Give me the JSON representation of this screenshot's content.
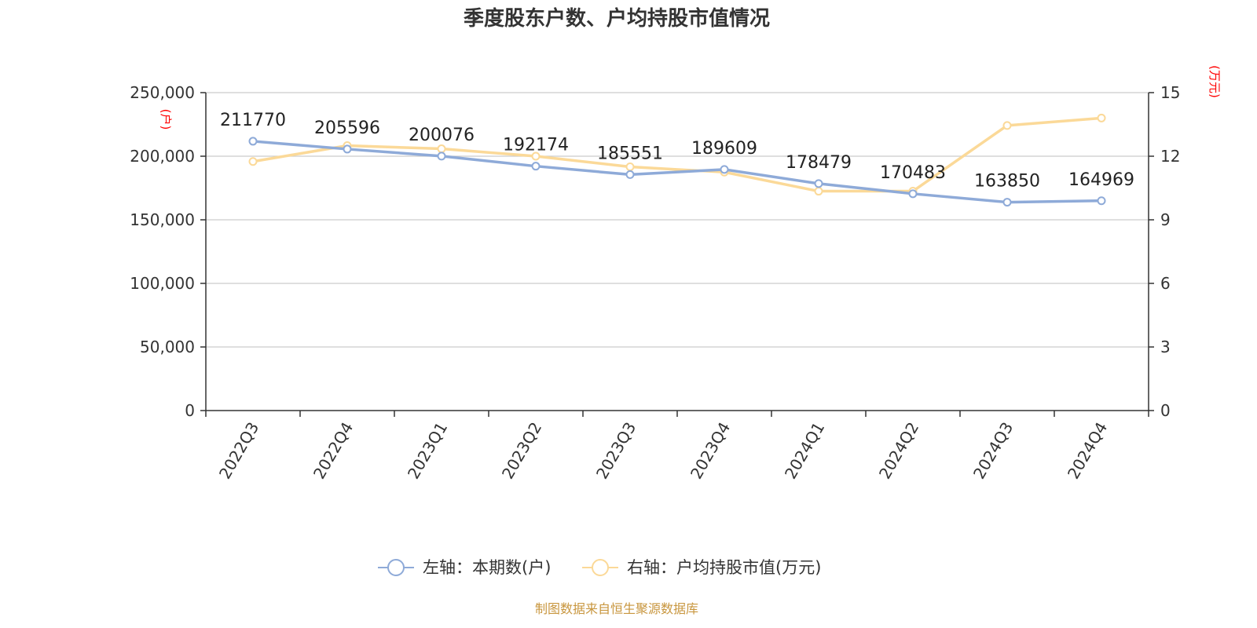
{
  "chart_data": {
    "type": "line",
    "title": "季度股东户数、户均持股市值情况",
    "categories": [
      "2022Q3",
      "2022Q4",
      "2023Q1",
      "2023Q2",
      "2023Q3",
      "2023Q4",
      "2024Q1",
      "2024Q2",
      "2024Q3",
      "2024Q4"
    ],
    "left_axis": {
      "unit": "(户)",
      "ylim": [
        0,
        250000
      ],
      "ticks": [
        0,
        50000,
        100000,
        150000,
        200000,
        250000
      ],
      "tick_labels": [
        "0",
        "50,000",
        "100,000",
        "150,000",
        "200,000",
        "250,000"
      ]
    },
    "right_axis": {
      "unit": "(万元)",
      "ylim": [
        0,
        15
      ],
      "ticks": [
        0,
        3,
        6,
        9,
        12,
        15
      ],
      "tick_labels": [
        "0",
        "3",
        "6",
        "9",
        "12",
        "15"
      ]
    },
    "grid": true,
    "legend_position": "bottom-center",
    "series": [
      {
        "name": "左轴：本期数(户)",
        "axis": "left",
        "color": "#8eaad8",
        "values": [
          211770,
          205596,
          200076,
          192174,
          185551,
          189609,
          178479,
          170483,
          163850,
          164969
        ],
        "data_labels": [
          "211770",
          "205596",
          "200076",
          "192174",
          "185551",
          "189609",
          "178479",
          "170483",
          "163850",
          "164969"
        ]
      },
      {
        "name": "右轴：户均持股市值(万元)",
        "axis": "right",
        "color": "#fbd998",
        "values": [
          11.75,
          12.5,
          12.35,
          12.0,
          11.5,
          11.25,
          10.35,
          10.35,
          13.45,
          13.8
        ]
      }
    ],
    "source": "制图数据来自恒生聚源数据库"
  }
}
